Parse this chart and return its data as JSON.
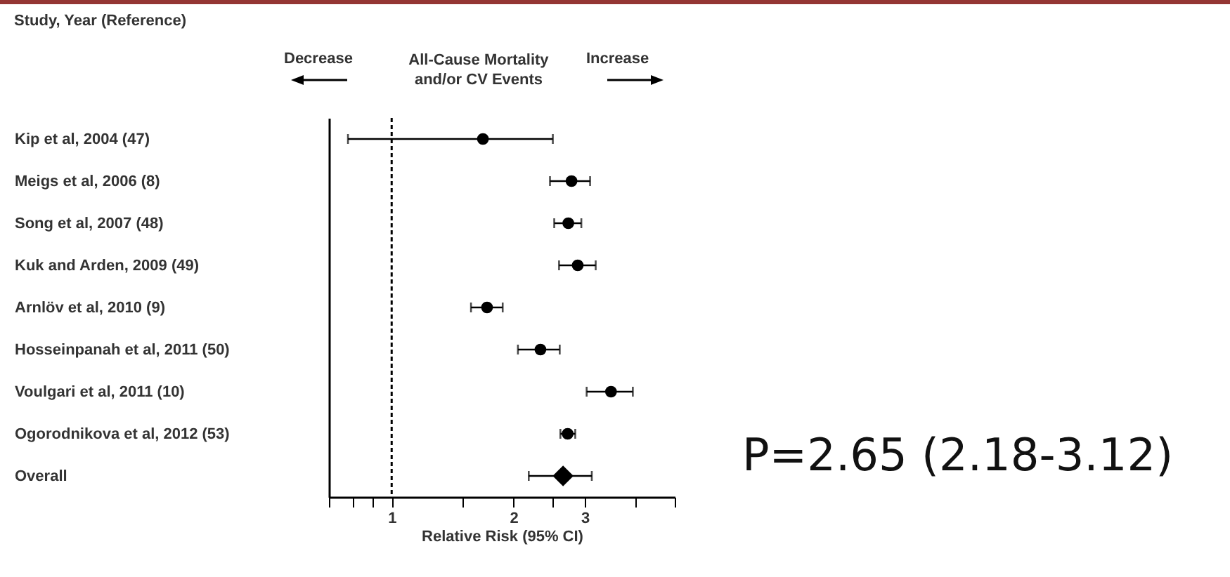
{
  "chart_data": {
    "type": "scatter",
    "orientation": "horizontal",
    "xlabel": "Relative Risk (95% CI)",
    "categories": [
      "Kip et al, 2004 (47)",
      "Meigs et al, 2006 (8)",
      "Song et al, 2007 (48)",
      "Kuk and Arden, 2009 (49)",
      "Arnlöv et al, 2010 (9)",
      "Hosseinpanah et al, 2011 (50)",
      "Voulgari et al, 2011 (10)",
      "Ogorodnikova et al, 2012 (53)",
      "Overall"
    ],
    "series": [
      {
        "color": "#000000",
        "marker": "circle",
        "values": [
          1.68,
          2.78,
          2.73,
          2.88,
          1.72,
          2.33,
          3.48,
          2.72,
          null
        ],
        "errors": [
          [
            0.78,
            2.5
          ],
          [
            2.46,
            3.09
          ],
          [
            2.52,
            2.94
          ],
          [
            2.59,
            3.19
          ],
          [
            1.57,
            1.88
          ],
          [
            2.05,
            2.6
          ],
          [
            3.03,
            3.94
          ],
          [
            2.61,
            2.84
          ],
          null
        ]
      },
      {
        "color": "#000000",
        "marker": "diamond",
        "values": [
          null,
          null,
          null,
          null,
          null,
          null,
          null,
          null,
          2.65
        ],
        "errors": [
          null,
          null,
          null,
          null,
          null,
          null,
          null,
          null,
          [
            2.18,
            3.12
          ]
        ]
      }
    ],
    "log": "x",
    "xlim": [
      0.7,
      5
    ],
    "xticks": [
      {
        "value": 0.7,
        "label": null
      },
      {
        "value": 0.8,
        "label": null
      },
      {
        "value": 0.9,
        "label": null
      },
      1,
      {
        "value": 1.5,
        "label": null
      },
      2,
      {
        "value": 2.5,
        "label": null
      },
      3,
      {
        "value": 4,
        "label": null
      },
      {
        "value": 5,
        "label": null
      }
    ],
    "ref_lines": [
      {
        "axis": "x",
        "value": 1,
        "line_style": "dashed",
        "color": "#000000"
      }
    ],
    "grid": false,
    "annotations": [
      "Study, Year (Reference)",
      "Decrease",
      "All-Cause Mortality and/or CV Events",
      "Increase",
      "P=2.65 (2.18-3.12)"
    ]
  }
}
